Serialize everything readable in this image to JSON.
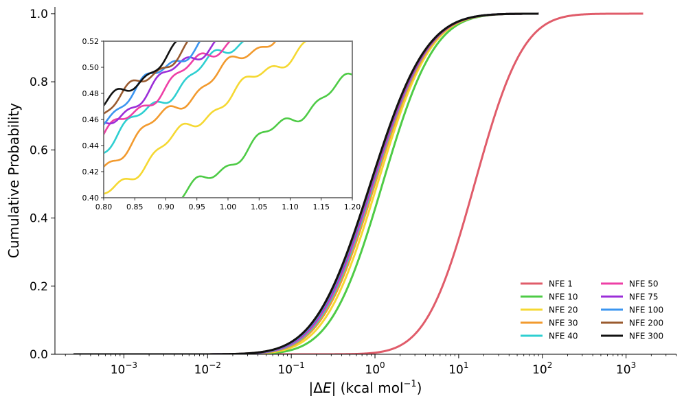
{
  "chart_data": {
    "type": "line",
    "main": {
      "xscale": "log",
      "xlim": [
        0.00015,
        4000
      ],
      "ylim": [
        0,
        1.02
      ],
      "xlabel_pre": "|Δ",
      "xlabel_var": "E",
      "xlabel_post": "| (kcal mol",
      "xlabel_sup": "−1",
      "xlabel_close": ")",
      "ylabel": "Cumulative Probability",
      "xticks": [
        {
          "value": 0.001,
          "base": "10",
          "exp": "−3"
        },
        {
          "value": 0.01,
          "base": "10",
          "exp": "−2"
        },
        {
          "value": 0.1,
          "base": "10",
          "exp": "−1"
        },
        {
          "value": 1,
          "base": "10",
          "exp": "0"
        },
        {
          "value": 10,
          "base": "10",
          "exp": "1"
        },
        {
          "value": 100,
          "base": "10",
          "exp": "2"
        },
        {
          "value": 1000,
          "base": "10",
          "exp": "3"
        }
      ],
      "yticks": [
        {
          "value": 0.0,
          "label": "0.0"
        },
        {
          "value": 0.2,
          "label": "0.2"
        },
        {
          "value": 0.4,
          "label": "0.4"
        },
        {
          "value": 0.6,
          "label": "0.6"
        },
        {
          "value": 0.8,
          "label": "0.8"
        },
        {
          "value": 1.0,
          "label": "1.0"
        }
      ],
      "legend_position": "lower-right",
      "series": [
        {
          "name": "NFE 1",
          "color": "#e05c6a",
          "median": 15.5,
          "sigma": 1.05,
          "xmin": 0.02,
          "xmax": 1600
        },
        {
          "name": "NFE 10",
          "color": "#4ecb46",
          "median": 1.23,
          "sigma": 1.12,
          "xmin": 0.00025,
          "xmax": 90
        },
        {
          "name": "NFE 20",
          "color": "#f5d832",
          "median": 1.07,
          "sigma": 1.15,
          "xmin": 0.00025,
          "xmax": 90
        },
        {
          "name": "NFE 30",
          "color": "#f29a2e",
          "median": 1.0,
          "sigma": 1.17,
          "xmin": 0.00025,
          "xmax": 90
        },
        {
          "name": "NFE 40",
          "color": "#2ecfd1",
          "median": 0.96,
          "sigma": 1.18,
          "xmin": 0.00025,
          "xmax": 90
        },
        {
          "name": "NFE 50",
          "color": "#ee3fa6",
          "median": 0.94,
          "sigma": 1.19,
          "xmin": 0.00025,
          "xmax": 90
        },
        {
          "name": "NFE 75",
          "color": "#9b2ed8",
          "median": 0.92,
          "sigma": 1.2,
          "xmin": 0.00025,
          "xmax": 90
        },
        {
          "name": "NFE 100",
          "color": "#3b95f0",
          "median": 0.9,
          "sigma": 1.2,
          "xmin": 0.00025,
          "xmax": 90
        },
        {
          "name": "NFE 200",
          "color": "#9a5a2e",
          "median": 0.89,
          "sigma": 1.21,
          "xmin": 0.00025,
          "xmax": 90
        },
        {
          "name": "NFE 300",
          "color": "#111111",
          "median": 0.88,
          "sigma": 1.21,
          "xmin": 0.00025,
          "xmax": 90
        }
      ]
    },
    "inset": {
      "xlim": [
        0.8,
        1.2
      ],
      "ylim": [
        0.4,
        0.52
      ],
      "xticks": [
        "0.80",
        "0.85",
        "0.90",
        "0.95",
        "1.00",
        "1.05",
        "1.10",
        "1.15",
        "1.20"
      ],
      "yticks": [
        "0.40",
        "0.42",
        "0.44",
        "0.46",
        "0.48",
        "0.50",
        "0.52"
      ]
    }
  }
}
